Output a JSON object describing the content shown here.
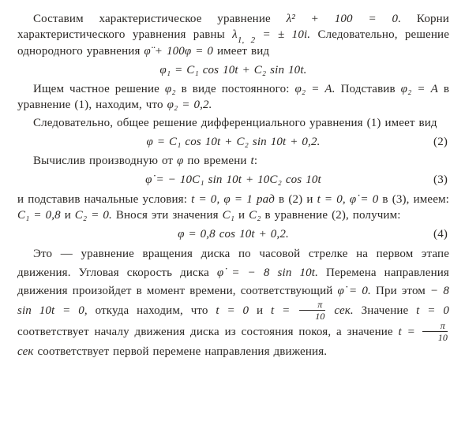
{
  "text_color": "#2a2724",
  "background": "#ffffff",
  "font_family": "Times New Roman",
  "base_fontsize_pt": 11,
  "para1a": "Составим характеристическое уравнение ",
  "char_eq": "λ² + 100 = 0.",
  "para1b": " Корни характеристического уравнения равны ",
  "roots": "λ",
  "roots_sub": "1, 2",
  "roots_val": " = ± 10i.",
  "para1c": " Следовательно, решение однородного уравнения ",
  "homog": "φ̈ + 100φ = 0",
  "para1d": " имеет вид",
  "eq1": "φ₁ = C₁ cos 10t + C₂ sin 10t.",
  "para2a": "Ищем частное решение ",
  "phi2": "φ₂",
  "para2b": " в виде постоянного: ",
  "phi2A": "φ₂ = A.",
  "para2c": " Подставив ",
  "phi2A2": "φ₂ = A",
  "para2d": " в уравнение (1), находим, что ",
  "phi2v": "φ₂ = 0,2.",
  "para3": "Следовательно, общее решение дифференциального уравнения (1) имеет вид",
  "eq2": "φ = C₁ cos 10t + C₂ sin 10t + 0,2.",
  "eq2n": "(2)",
  "para4a": "Вычислив производную от ",
  "para4b": " по времени ",
  "para4c": ":",
  "eq3": "φ̇ = − 10C₁ sin 10t + 10C₂ cos 10t",
  "eq3n": "(3)",
  "para5a": "и подставив начальные условия: ",
  "ic1": "t = 0, φ = 1 рад",
  "para5b": " в (2) и ",
  "ic2": "t = 0, φ̇ = 0",
  "para5c": " в (3), имеем: ",
  "ic3": "C₁ = 0,8",
  "para5d": " и ",
  "ic4": "C₂ = 0.",
  "para5e": " Внося эти значения ",
  "ic5": "C₁",
  "para5f": " и ",
  "ic6": "C₂",
  "para5g": " в уравнение (2), получим:",
  "eq4": "φ = 0,8 cos 10t + 0,2.",
  "eq4n": "(4)",
  "para6a": "Это — уравнение вращения диска по часовой стрелке на первом этапе движения. Угловая скорость диска ",
  "vel": "φ̇ = − 8 sin 10t.",
  "para6b": " Перемена направления движения произойдет в момент времени, соответствующий ",
  "dphi0": "φ̇ = 0.",
  "para6c": " При этом ",
  "sineq": "− 8 sin 10t = 0,",
  "para6d": " откуда находим, что ",
  "t0": "t = 0",
  "para6e": " и ",
  "tfrac_n": "π",
  "tfrac_d": "10",
  "sek": " сек.",
  "para7a": " Значение ",
  "t0b": "t = 0",
  "para7b": " соответствует началу движения диска из состояния покоя, а значение ",
  "tfrac2_n": "π",
  "tfrac2_d": "10",
  "sek2": " сек",
  "para7c": " соответствует первой перемене направления движения."
}
